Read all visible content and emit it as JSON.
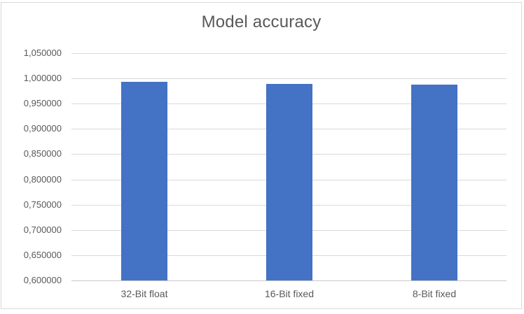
{
  "chart_data": {
    "type": "bar",
    "title": "Model accuracy",
    "categories": [
      "32-Bit float",
      "16-Bit fixed",
      "8-Bit fixed"
    ],
    "values": [
      0.9935,
      0.9888,
      0.9874
    ],
    "xlabel": "",
    "ylabel": "",
    "ylim": [
      0.6,
      1.05
    ],
    "y_tick_interval": 0.05,
    "y_tick_labels_top_to_bottom": [
      "1,050000",
      "1,000000",
      "0,950000",
      "0,900000",
      "0,850000",
      "0,800000",
      "0,750000",
      "0,700000",
      "0,650000",
      "0,600000"
    ],
    "decimal_separator": ",",
    "grid": true,
    "legend": false,
    "colors": {
      "bar": "#4472C4",
      "gridline": "#D9D9D9",
      "axis_line": "#C9C9C9",
      "text": "#595959",
      "border": "#D9D9D9",
      "background": "#FFFFFF"
    }
  }
}
